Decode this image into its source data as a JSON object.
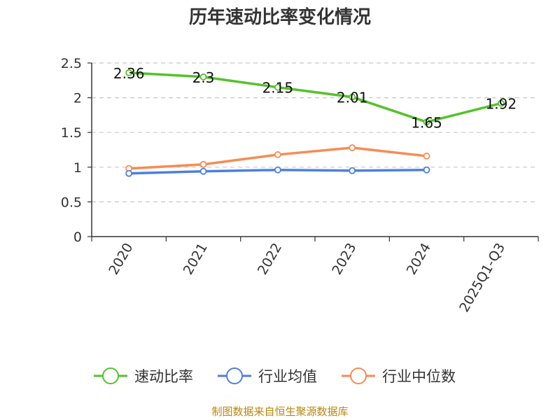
{
  "title": "历年速动比率变化情况",
  "source": "制图数据来自恒生聚源数据库",
  "colors": {
    "series0": "#55c22b",
    "series1": "#4e7fdc",
    "series2": "#f68c54",
    "grid": "#c8c8c8",
    "axis": "#333333"
  },
  "chart_data": {
    "type": "line",
    "title": "历年速动比率变化情况",
    "xlabel": "",
    "ylabel": "",
    "categories": [
      "2020",
      "2021",
      "2022",
      "2023",
      "2024",
      "2025Q1-Q3"
    ],
    "ylim": [
      0,
      2.5
    ],
    "yticks": [
      "0",
      "0.5",
      "1",
      "1.5",
      "2",
      "2.5"
    ],
    "grid": "horizontal dashed",
    "legend": "bottom",
    "series": [
      {
        "name": "速动比率",
        "values": [
          2.36,
          2.3,
          2.15,
          2.01,
          1.65,
          1.92
        ],
        "labels": [
          "2.36",
          "2.3",
          "2.15",
          "2.01",
          "1.65",
          "1.92"
        ],
        "color": "#55c22b"
      },
      {
        "name": "行业均值",
        "values": [
          0.91,
          0.94,
          0.96,
          0.95,
          0.96,
          null
        ],
        "color": "#4e7fdc"
      },
      {
        "name": "行业中位数",
        "values": [
          0.98,
          1.04,
          1.18,
          1.28,
          1.16,
          null
        ],
        "color": "#f68c54"
      }
    ]
  }
}
